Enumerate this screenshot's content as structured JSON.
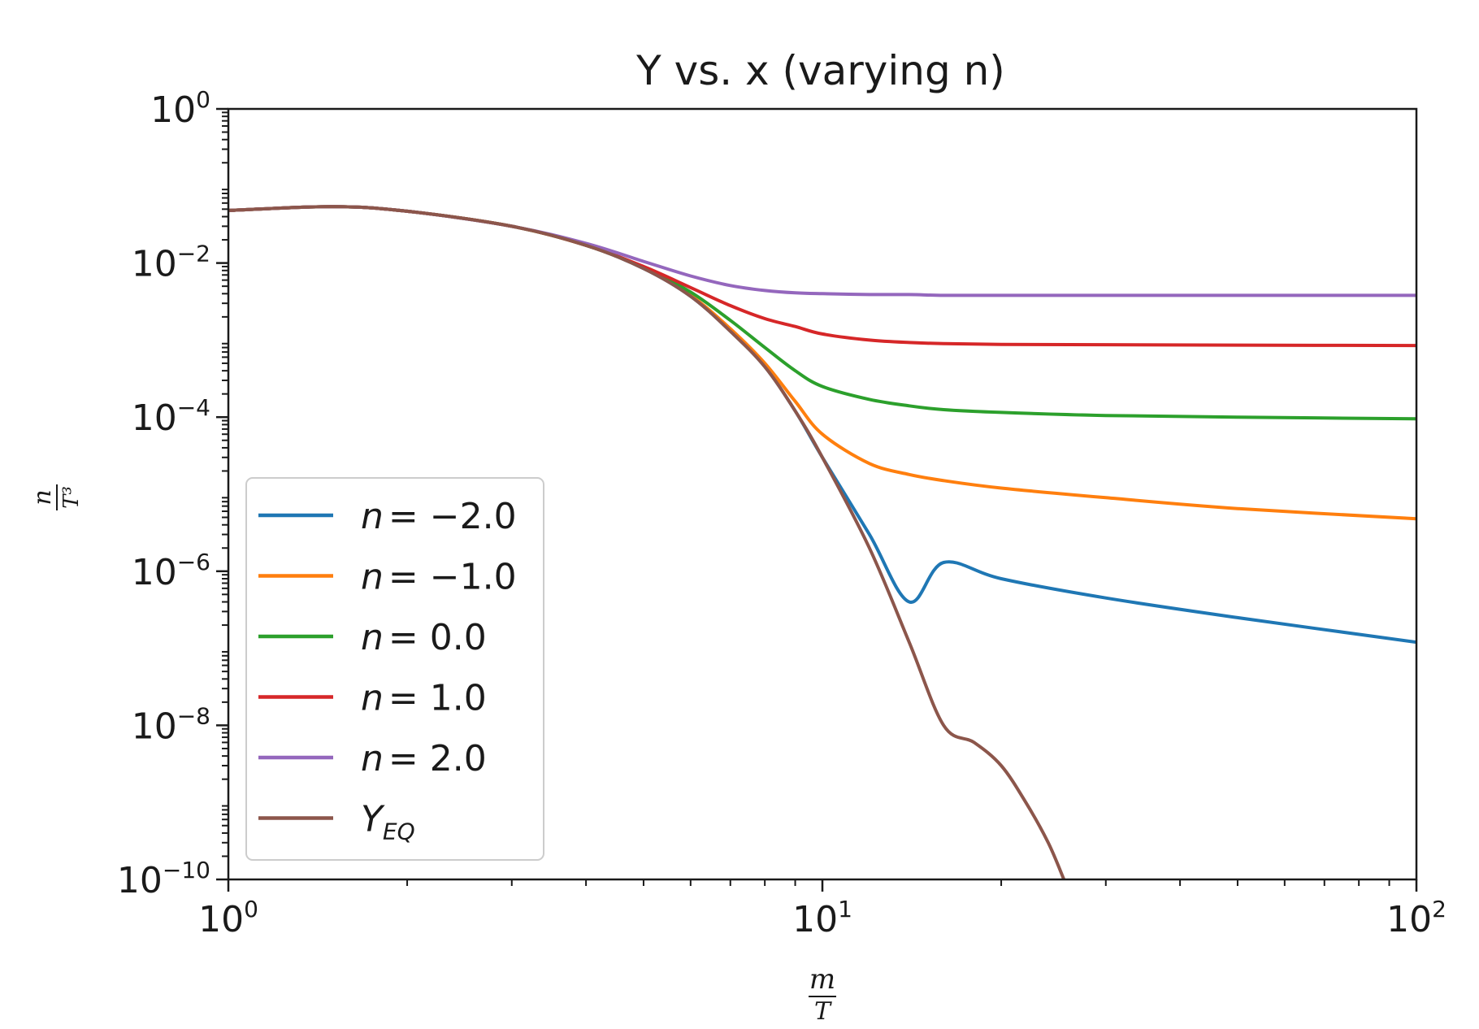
{
  "chart_data": {
    "type": "line",
    "title": "Y vs. x  (varying n)",
    "xlabel": {
      "numerator": "m",
      "denominator": "T"
    },
    "ylabel": {
      "numerator": "n",
      "denominator": "T³"
    },
    "xscale": "log",
    "yscale": "log",
    "xlim": [
      1,
      100
    ],
    "ylim": [
      1e-10,
      1
    ],
    "x_ticks": [
      {
        "base": "10",
        "exp": "0"
      },
      {
        "base": "10",
        "exp": "1"
      },
      {
        "base": "10",
        "exp": "2"
      }
    ],
    "y_ticks": [
      {
        "base": "10",
        "exp": "0"
      },
      {
        "base": "10",
        "exp": "−2"
      },
      {
        "base": "10",
        "exp": "−4"
      },
      {
        "base": "10",
        "exp": "−6"
      },
      {
        "base": "10",
        "exp": "−8"
      },
      {
        "base": "10",
        "exp": "−10"
      }
    ],
    "grid": false,
    "legend_position": "lower-left",
    "series": [
      {
        "name": "n = −2.0",
        "label_var": "n",
        "label_value": "= −2.0",
        "color": "#1f77b4",
        "x": [
          1,
          1.5,
          2,
          3,
          4,
          5,
          6,
          7,
          8,
          9,
          10,
          12,
          14,
          16,
          20,
          30,
          50,
          100
        ],
        "y": [
          0.048,
          0.054,
          0.047,
          0.03,
          0.017,
          0.0085,
          0.0037,
          0.0013,
          0.00045,
          0.00012,
          3e-05,
          3e-06,
          4e-07,
          1.3e-06,
          8e-07,
          4.5e-07,
          2.5e-07,
          1.2e-07
        ]
      },
      {
        "name": "n = −1.0",
        "label_var": "n",
        "label_value": "= −1.0",
        "color": "#ff7f0e",
        "x": [
          1,
          1.5,
          2,
          3,
          4,
          5,
          6,
          7,
          8,
          9,
          10,
          12,
          14,
          16,
          20,
          30,
          50,
          100
        ],
        "y": [
          0.048,
          0.054,
          0.047,
          0.03,
          0.017,
          0.0086,
          0.0038,
          0.0014,
          0.0005,
          0.00016,
          6e-05,
          2.5e-05,
          1.8e-05,
          1.5e-05,
          1.2e-05,
          9e-06,
          6.5e-06,
          4.8e-06
        ]
      },
      {
        "name": "n = 0.0",
        "label_var": "n",
        "label_value": "= 0.0",
        "color": "#2ca02c",
        "x": [
          1,
          1.5,
          2,
          3,
          4,
          5,
          6,
          7,
          8,
          9,
          10,
          12,
          14,
          16,
          20,
          30,
          50,
          100
        ],
        "y": [
          0.048,
          0.054,
          0.047,
          0.03,
          0.017,
          0.0088,
          0.0042,
          0.0018,
          0.0008,
          0.0004,
          0.00025,
          0.00017,
          0.00014,
          0.000125,
          0.000115,
          0.000105,
          0.0001,
          9.5e-05
        ]
      },
      {
        "name": "n = 1.0",
        "label_var": "n",
        "label_value": "= 1.0",
        "color": "#d62728",
        "x": [
          1,
          1.5,
          2,
          3,
          4,
          5,
          6,
          7,
          8,
          9,
          10,
          12,
          14,
          16,
          20,
          30,
          50,
          100
        ],
        "y": [
          0.048,
          0.054,
          0.047,
          0.03,
          0.017,
          0.009,
          0.0048,
          0.0028,
          0.0019,
          0.0015,
          0.0012,
          0.001,
          0.00093,
          0.0009,
          0.00088,
          0.00087,
          0.00086,
          0.00085
        ]
      },
      {
        "name": "n = 2.0",
        "label_var": "n",
        "label_value": "= 2.0",
        "color": "#9467bd",
        "x": [
          1,
          1.5,
          2,
          3,
          4,
          5,
          6,
          7,
          8,
          9,
          10,
          12,
          14,
          16,
          20,
          30,
          50,
          100
        ],
        "y": [
          0.048,
          0.054,
          0.047,
          0.03,
          0.018,
          0.0105,
          0.0068,
          0.0051,
          0.0044,
          0.0041,
          0.004,
          0.0039,
          0.0039,
          0.0038,
          0.0038,
          0.0038,
          0.0038,
          0.0038
        ]
      },
      {
        "name": "Y_EQ",
        "label_var": "Y",
        "label_sub": "EQ",
        "label_value": "",
        "color": "#8c564b",
        "x": [
          1,
          1.5,
          2,
          3,
          4,
          5,
          6,
          7,
          8,
          9,
          10,
          12,
          14,
          16,
          18,
          20,
          22,
          24,
          25.5
        ],
        "y": [
          0.048,
          0.054,
          0.047,
          0.03,
          0.017,
          0.0085,
          0.0037,
          0.0013,
          0.00045,
          0.00012,
          3e-05,
          2e-06,
          1.2e-07,
          1e-08,
          6e-09,
          3e-09,
          1e-09,
          3e-10,
          1e-10
        ]
      }
    ]
  }
}
